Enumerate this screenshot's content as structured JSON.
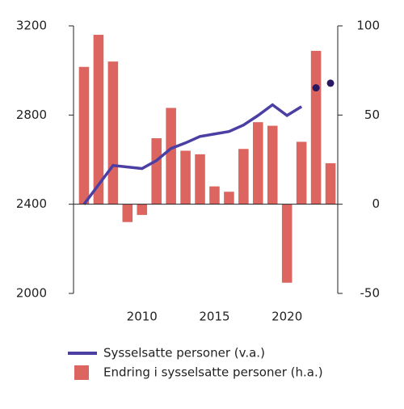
{
  "chart_data": {
    "type": "bar_line",
    "x": [
      2006,
      2007,
      2008,
      2009,
      2010,
      2011,
      2012,
      2013,
      2014,
      2015,
      2016,
      2017,
      2018,
      2019,
      2020,
      2021,
      2022,
      2023
    ],
    "xlim": [
      2005.5,
      2023.5
    ],
    "xticks": [
      2010,
      2015,
      2020
    ],
    "ylim": [
      2000,
      3200
    ],
    "yticks": [
      2000,
      2400,
      2800,
      3200
    ],
    "y2lim": [
      -50,
      100
    ],
    "y2ticks": [
      -50,
      0,
      50,
      100
    ],
    "series": [
      {
        "name": "Endring i sysselsatte personer (h.a.)",
        "type": "bar",
        "axis": "y2",
        "color": "#dc6560",
        "values": [
          77,
          95,
          80,
          -10,
          -6,
          37,
          54,
          30,
          28,
          10,
          7,
          31,
          46,
          44,
          -44,
          35,
          86,
          23
        ]
      },
      {
        "name": "Sysselsatte personer (v.a.)",
        "type": "line",
        "axis": "y",
        "color": "#4b3fa3",
        "values": [
          2400,
          2487,
          2574,
          2567,
          2560,
          2596,
          2650,
          2675,
          2704,
          2715,
          2726,
          2755,
          2798,
          2846,
          2798,
          2838,
          null,
          null
        ]
      },
      {
        "type": "points",
        "axis": "y",
        "color": "#2a1860",
        "values": [
          null,
          null,
          null,
          null,
          null,
          null,
          null,
          null,
          null,
          null,
          null,
          null,
          null,
          null,
          null,
          null,
          2922,
          2943
        ]
      }
    ]
  }
}
